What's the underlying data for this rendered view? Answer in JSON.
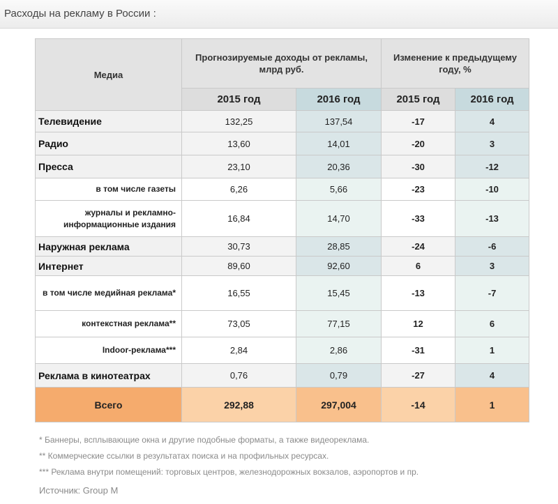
{
  "page": {
    "title": "Расходы на рекламу в России :"
  },
  "table": {
    "header": {
      "media": "Медиа",
      "revenue": "Прогнозируемые доходы от рекламы, млрд руб.",
      "change": "Изменение к предыдущему году, %",
      "y2015": "2015 год",
      "y2016": "2016 год"
    },
    "rows": [
      {
        "label": "Телевидение",
        "d15": "132,25",
        "d16": "137,54",
        "p15": "-17",
        "p16": "4"
      },
      {
        "label": "Радио",
        "d15": "13,60",
        "d16": "14,01",
        "p15": "-20",
        "p16": "3"
      },
      {
        "label": "Пресса",
        "d15": "23,10",
        "d16": "20,36",
        "p15": "-30",
        "p16": "-12"
      },
      {
        "label": "в том числе газеты",
        "d15": "6,26",
        "d16": "5,66",
        "p15": "-23",
        "p16": "-10"
      },
      {
        "label": "журналы и рекламно-информационные издания",
        "d15": "16,84",
        "d16": "14,70",
        "p15": "-33",
        "p16": "-13"
      },
      {
        "label": "Наружная реклама",
        "d15": "30,73",
        "d16": "28,85",
        "p15": "-24",
        "p16": "-6"
      },
      {
        "label": "Интернет",
        "d15": "89,60",
        "d16": "92,60",
        "p15": "6",
        "p16": "3"
      },
      {
        "label": "в том числе медийная реклама*",
        "d15": "16,55",
        "d16": "15,45",
        "p15": "-13",
        "p16": "-7"
      },
      {
        "label": "контекстная реклама**",
        "d15": "73,05",
        "d16": "77,15",
        "p15": "12",
        "p16": "6"
      },
      {
        "label": "Indoor-реклама***",
        "d15": "2,84",
        "d16": "2,86",
        "p15": "-31",
        "p16": "1"
      },
      {
        "label": "Реклама в кинотеатрах",
        "d15": "0,76",
        "d16": "0,79",
        "p15": "-27",
        "p16": "4"
      }
    ],
    "total": {
      "label": "Всего",
      "d15": "292,88",
      "d16": "297,004",
      "p15": "-14",
      "p16": "1"
    }
  },
  "footnotes": [
    "* Баннеры, всплывающие окна и другие подобные форматы, а также видеореклама.",
    "** Коммерческие ссылки в результатах поиска и на профильных ресурсах.",
    "*** Реклама внутри помещений: торговых центров, железнодорожных вокзалов, аэропортов и пр."
  ],
  "source": "Источник: Group M",
  "colors": {
    "header_gray": "#e3e3e3",
    "header_blue": "#c7dade",
    "total_orange": "#f5ab6d",
    "total_light": "#fbd2a8"
  }
}
